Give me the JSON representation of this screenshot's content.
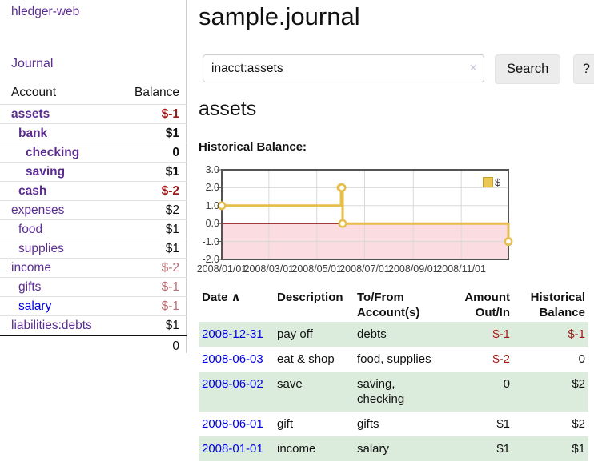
{
  "header": {
    "title": "sample.journal"
  },
  "search": {
    "value": "inacct:assets",
    "clear_icon": "×",
    "button_label": "Search",
    "help_label": "?"
  },
  "sidebar": {
    "brand": "hledger-web",
    "journal_label": "Journal",
    "accounts_header": {
      "account": "Account",
      "balance": "Balance"
    },
    "accounts": [
      {
        "name": "assets",
        "indent": 0,
        "balance": "$-1",
        "bold": true,
        "balance_style": "negative"
      },
      {
        "name": "bank",
        "indent": 1,
        "balance": "$1",
        "bold": true,
        "balance_style": "normal"
      },
      {
        "name": "checking",
        "indent": 2,
        "balance": "0",
        "bold": true,
        "balance_style": "normal"
      },
      {
        "name": "saving",
        "indent": 2,
        "balance": "$1",
        "bold": true,
        "balance_style": "normal"
      },
      {
        "name": "cash",
        "indent": 1,
        "balance": "$-2",
        "bold": true,
        "balance_style": "negative"
      },
      {
        "name": "expenses",
        "indent": 0,
        "balance": "$2",
        "bold": false,
        "balance_style": "normal"
      },
      {
        "name": "food",
        "indent": 1,
        "balance": "$1",
        "bold": false,
        "balance_style": "normal"
      },
      {
        "name": "supplies",
        "indent": 1,
        "balance": "$1",
        "bold": false,
        "balance_style": "normal"
      },
      {
        "name": "income",
        "indent": 0,
        "balance": "$-2",
        "bold": false,
        "balance_style": "negative-muted"
      },
      {
        "name": "gifts",
        "indent": 1,
        "balance": "$-1",
        "bold": false,
        "balance_style": "negative-muted"
      },
      {
        "name": "salary",
        "indent": 1,
        "balance": "$-1",
        "bold": false,
        "balance_style": "negative-muted",
        "link_color": "blue"
      },
      {
        "name": "liabilities:debts",
        "indent": 0,
        "balance": "$1",
        "bold": false,
        "balance_style": "normal"
      }
    ],
    "total": "0"
  },
  "account_page": {
    "title": "assets",
    "chart_label": "Historical Balance:"
  },
  "chart_data": {
    "type": "line",
    "style": "step",
    "title": "Historical Balance",
    "legend": [
      {
        "label": "$",
        "color": "#e6be4b"
      }
    ],
    "legend_position": "top-right",
    "grid": true,
    "xlim": [
      "2008-01-01",
      "2008-12-31"
    ],
    "ylim": [
      -2,
      3
    ],
    "x_ticks": [
      "2008/01/01",
      "2008/03/01",
      "2008/05/01",
      "2008/07/01",
      "2008/09/01",
      "2008/11/01"
    ],
    "y_ticks": [
      "3.0",
      "2.0",
      "1.0",
      "0.0",
      "-1.0",
      "-2.0"
    ],
    "points": [
      {
        "x": "2008-01-01",
        "y": 1
      },
      {
        "x": "2008-06-01",
        "y": 2
      },
      {
        "x": "2008-06-02",
        "y": 2
      },
      {
        "x": "2008-06-03",
        "y": 0
      },
      {
        "x": "2008-12-31",
        "y": -1
      }
    ],
    "negative_region": true
  },
  "register": {
    "columns": [
      {
        "label": "Date",
        "align": "left",
        "sorted": "asc"
      },
      {
        "label": "Description",
        "align": "left"
      },
      {
        "label": "To/From Account(s)",
        "align": "left"
      },
      {
        "label": "Amount Out/In",
        "align": "right"
      },
      {
        "label": "Historical Balance",
        "align": "right"
      }
    ],
    "rows": [
      {
        "date": "2008-12-31",
        "description": "pay off",
        "accounts": "debts",
        "amount": "$-1",
        "amount_negative": true,
        "balance": "$-1",
        "balance_negative": true
      },
      {
        "date": "2008-06-03",
        "description": "eat & shop",
        "accounts": "food, supplies",
        "amount": "$-2",
        "amount_negative": true,
        "balance": "0",
        "balance_negative": false
      },
      {
        "date": "2008-06-02",
        "description": "save",
        "accounts": "saving, checking",
        "amount": "0",
        "amount_negative": false,
        "balance": "$2",
        "balance_negative": false
      },
      {
        "date": "2008-06-01",
        "description": "gift",
        "accounts": "gifts",
        "amount": "$1",
        "amount_negative": false,
        "balance": "$2",
        "balance_negative": false
      },
      {
        "date": "2008-01-01",
        "description": "income",
        "accounts": "salary",
        "amount": "$1",
        "amount_negative": false,
        "balance": "$1",
        "balance_negative": false
      }
    ]
  },
  "icons": {
    "clear_search": "×",
    "sort_ascending": "∧"
  },
  "colors": {
    "accent_purple": "#5c2d91",
    "link_blue": "#0000e0",
    "negative": "#9d1a1a",
    "negative_muted": "#bb6c74",
    "row_green": "#dcecdc",
    "chart_line": "#e6be4b",
    "chart_negative_bg": "#fbdce0",
    "zero_line": "#8b0000"
  }
}
